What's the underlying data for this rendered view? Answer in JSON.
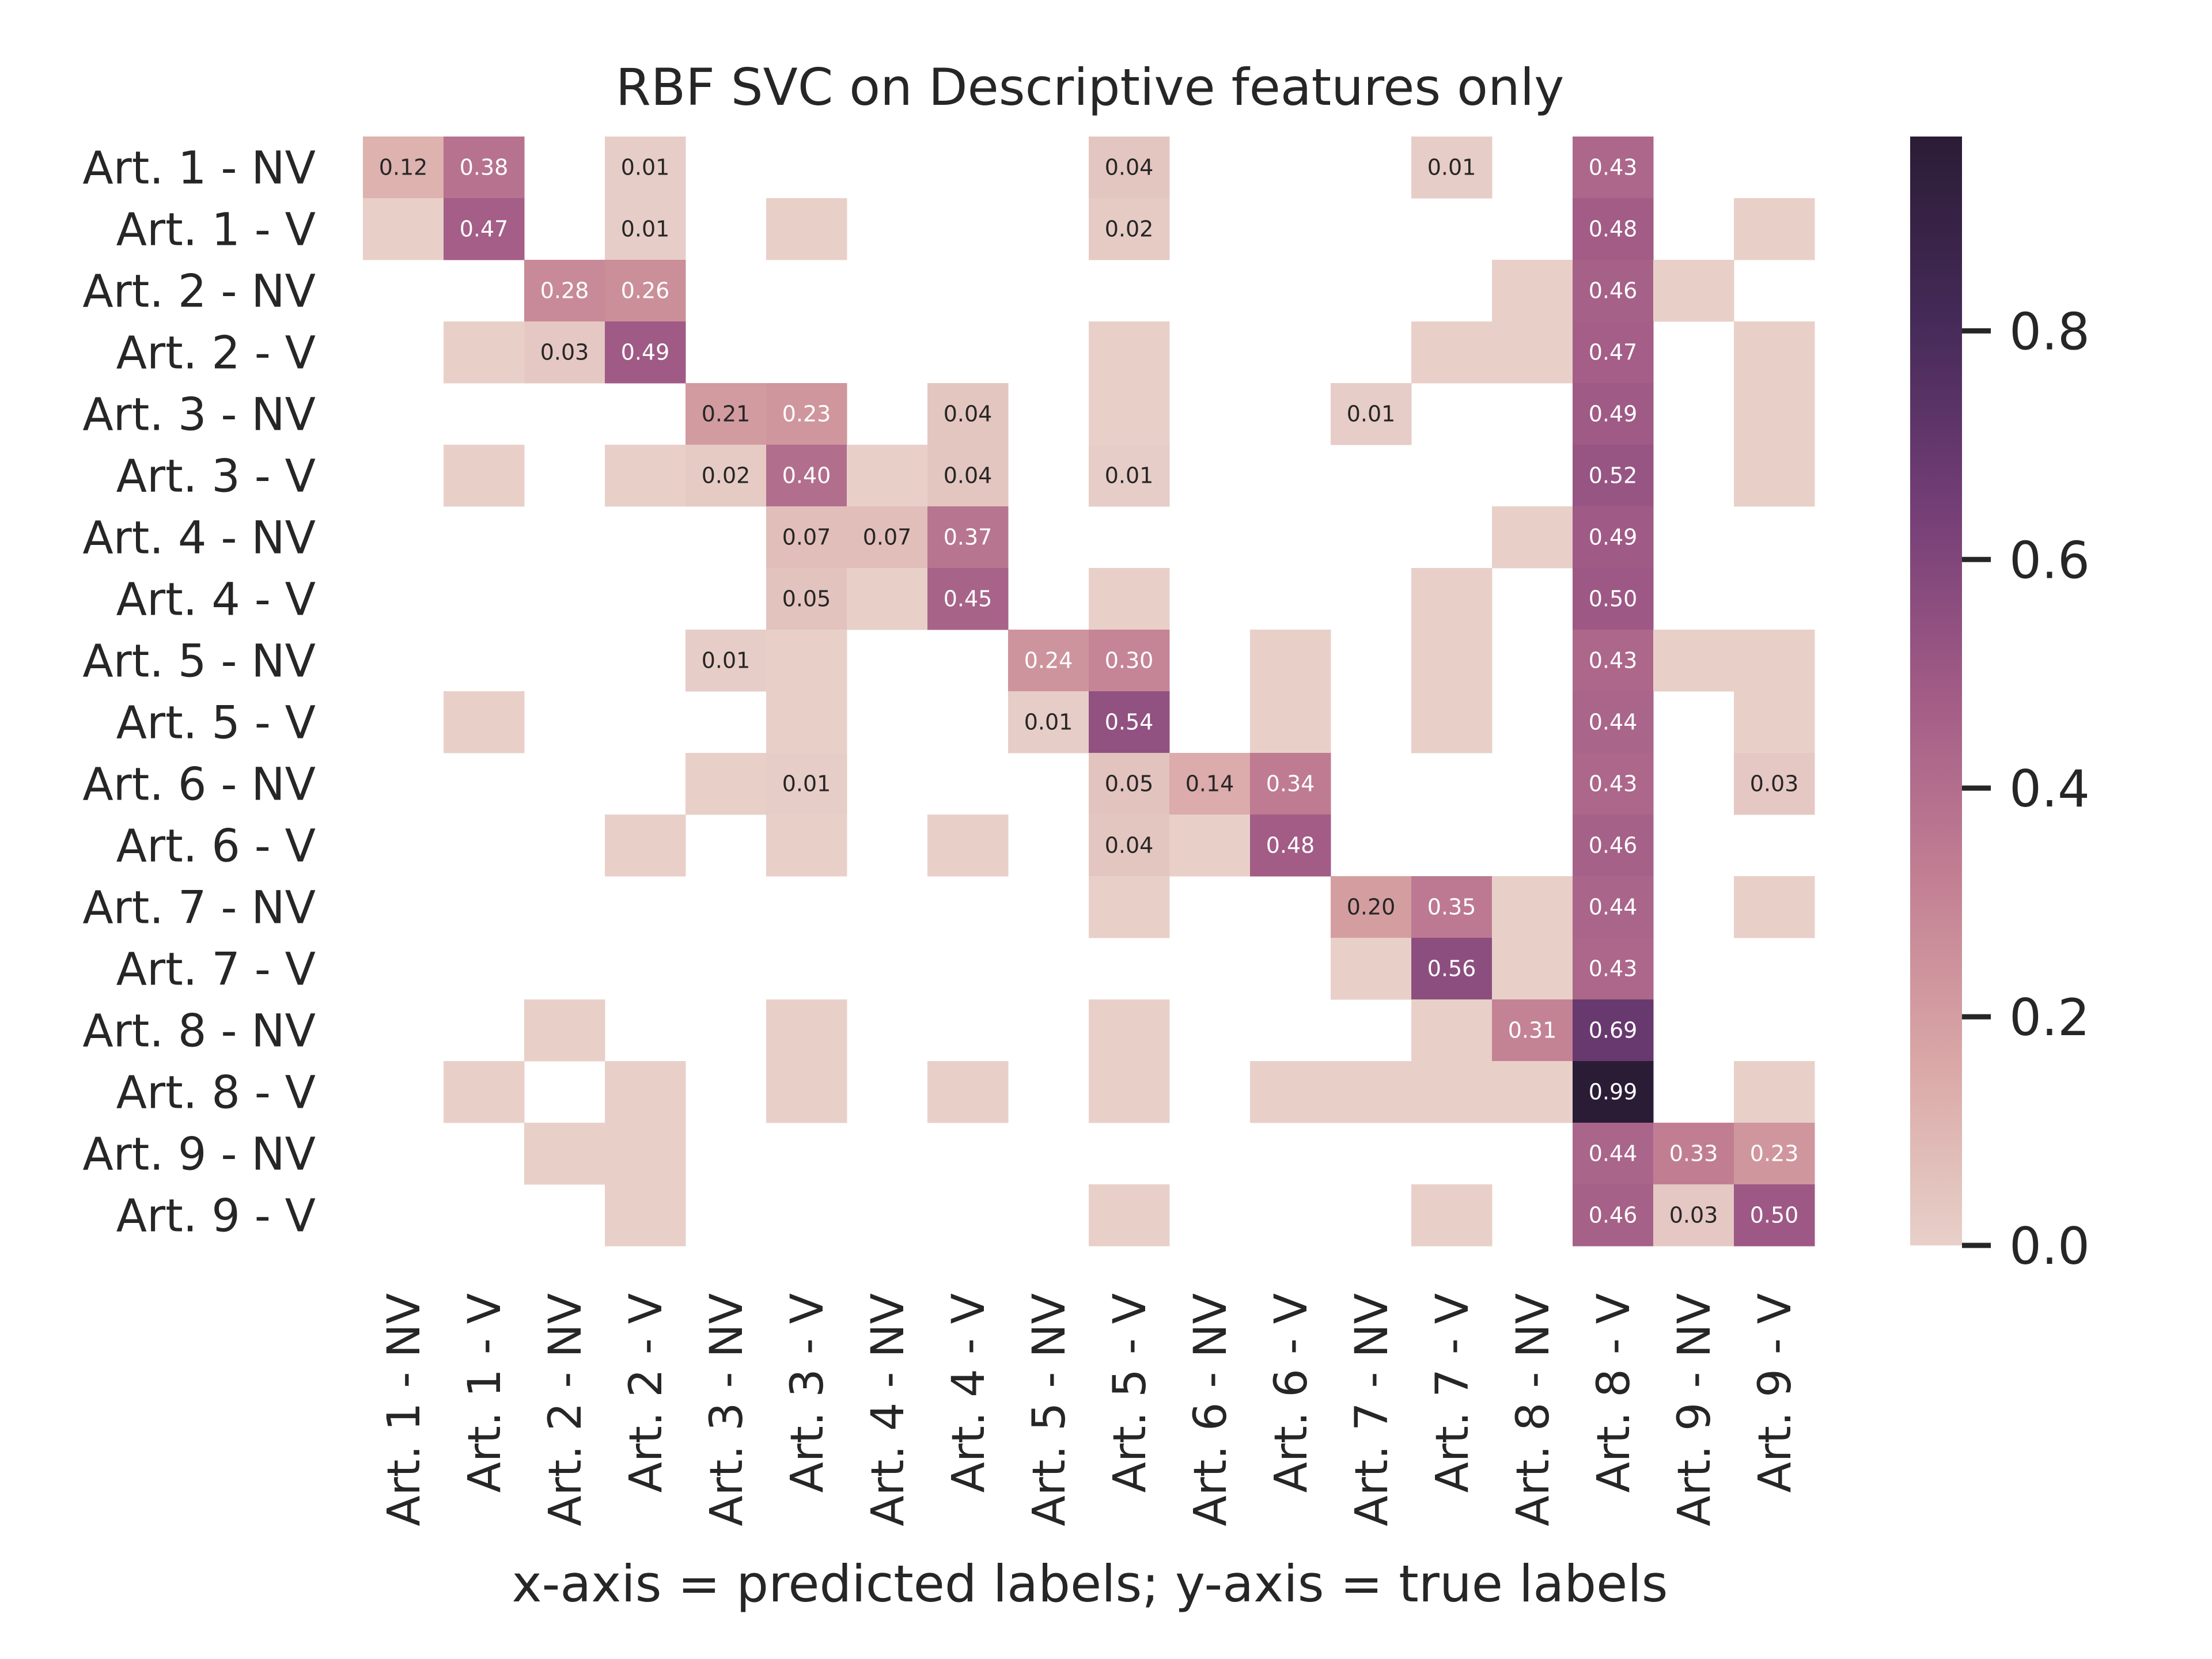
{
  "chart_data": {
    "type": "heatmap",
    "title": "RBF SVC on Descriptive features only",
    "xlabel": "x-axis = predicted labels; y-axis = true labels",
    "ylabel": "",
    "x_categories": [
      "Art. 1 - NV",
      "Art. 1 - V",
      "Art. 2 - NV",
      "Art. 2 - V",
      "Art. 3 - NV",
      "Art. 3 - V",
      "Art. 4 - NV",
      "Art. 4 - V",
      "Art. 5 - NV",
      "Art. 5 - V",
      "Art. 6 - NV",
      "Art. 6 - V",
      "Art. 7 - NV",
      "Art. 7 - V",
      "Art. 8 - NV",
      "Art. 8 - V",
      "Art. 9 - NV",
      "Art. 9 - V"
    ],
    "y_categories": [
      "Art. 1 - NV",
      "Art. 1 - V",
      "Art. 2 - NV",
      "Art. 2 - V",
      "Art. 3 - NV",
      "Art. 3 - V",
      "Art. 4 - NV",
      "Art. 4 - V",
      "Art. 5 - NV",
      "Art. 5 - V",
      "Art. 6 - NV",
      "Art. 6 - V",
      "Art. 7 - NV",
      "Art. 7 - V",
      "Art. 8 - NV",
      "Art. 8 - V",
      "Art. 9 - NV",
      "Art. 9 - V"
    ],
    "values": [
      [
        0.12,
        0.38,
        null,
        0.01,
        null,
        null,
        null,
        null,
        null,
        0.04,
        null,
        null,
        null,
        0.01,
        null,
        0.43,
        null,
        null
      ],
      [
        0.0,
        0.47,
        null,
        0.01,
        null,
        0.0,
        null,
        null,
        null,
        0.02,
        null,
        null,
        null,
        null,
        null,
        0.48,
        null,
        0.0
      ],
      [
        null,
        null,
        0.28,
        0.26,
        null,
        null,
        null,
        null,
        null,
        null,
        null,
        null,
        null,
        null,
        0.0,
        0.46,
        0.0,
        null
      ],
      [
        null,
        0.0,
        0.03,
        0.49,
        null,
        null,
        null,
        null,
        null,
        0.0,
        null,
        null,
        null,
        0.0,
        0.0,
        0.47,
        null,
        0.0
      ],
      [
        null,
        null,
        null,
        null,
        0.21,
        0.23,
        null,
        0.04,
        null,
        0.0,
        null,
        null,
        0.01,
        null,
        null,
        0.49,
        null,
        0.0
      ],
      [
        null,
        0.0,
        null,
        0.0,
        0.02,
        0.4,
        0.0,
        0.04,
        null,
        0.01,
        null,
        null,
        null,
        null,
        null,
        0.52,
        null,
        0.0
      ],
      [
        null,
        null,
        null,
        null,
        null,
        0.07,
        0.07,
        0.37,
        null,
        null,
        null,
        null,
        null,
        null,
        0.0,
        0.49,
        null,
        null
      ],
      [
        null,
        null,
        null,
        null,
        null,
        0.05,
        0.0,
        0.45,
        null,
        0.0,
        null,
        null,
        null,
        0.0,
        null,
        0.5,
        null,
        null
      ],
      [
        null,
        null,
        null,
        null,
        0.01,
        0.0,
        null,
        null,
        0.24,
        0.3,
        null,
        0.0,
        null,
        0.0,
        null,
        0.43,
        0.0,
        0.0
      ],
      [
        null,
        0.0,
        null,
        null,
        null,
        0.0,
        null,
        null,
        0.01,
        0.54,
        null,
        0.0,
        null,
        0.0,
        null,
        0.44,
        null,
        0.0
      ],
      [
        null,
        null,
        null,
        null,
        0.0,
        0.01,
        null,
        null,
        null,
        0.05,
        0.14,
        0.34,
        null,
        null,
        null,
        0.43,
        null,
        0.03
      ],
      [
        null,
        null,
        null,
        0.0,
        null,
        0.0,
        null,
        0.0,
        null,
        0.04,
        0.0,
        0.48,
        null,
        null,
        null,
        0.46,
        null,
        null
      ],
      [
        null,
        null,
        null,
        null,
        null,
        null,
        null,
        null,
        null,
        0.0,
        null,
        null,
        0.2,
        0.35,
        0.0,
        0.44,
        null,
        0.0
      ],
      [
        null,
        null,
        null,
        null,
        null,
        null,
        null,
        null,
        null,
        null,
        null,
        null,
        0.0,
        0.56,
        0.0,
        0.43,
        null,
        null
      ],
      [
        null,
        null,
        0.0,
        null,
        null,
        0.0,
        null,
        null,
        null,
        0.0,
        null,
        null,
        null,
        0.0,
        0.31,
        0.69,
        null,
        null
      ],
      [
        null,
        0.0,
        null,
        0.0,
        null,
        0.0,
        null,
        0.0,
        null,
        0.0,
        null,
        0.0,
        0.0,
        0.0,
        0.0,
        0.99,
        null,
        0.0
      ],
      [
        null,
        null,
        0.0,
        0.0,
        null,
        null,
        null,
        null,
        null,
        null,
        null,
        null,
        null,
        null,
        null,
        0.44,
        0.33,
        0.23
      ],
      [
        null,
        null,
        null,
        0.0,
        null,
        null,
        null,
        null,
        null,
        0.0,
        null,
        null,
        null,
        0.0,
        null,
        0.46,
        0.03,
        0.5
      ]
    ],
    "colorbar": {
      "min": 0.0,
      "max": 0.97,
      "ticks": [
        "0.0",
        "0.2",
        "0.4",
        "0.6",
        "0.8"
      ]
    },
    "colormap": [
      "#e8d0c9",
      "#d9a7a6",
      "#c27f93",
      "#a15b86",
      "#733e76",
      "#452a58",
      "#2b1c36"
    ]
  }
}
